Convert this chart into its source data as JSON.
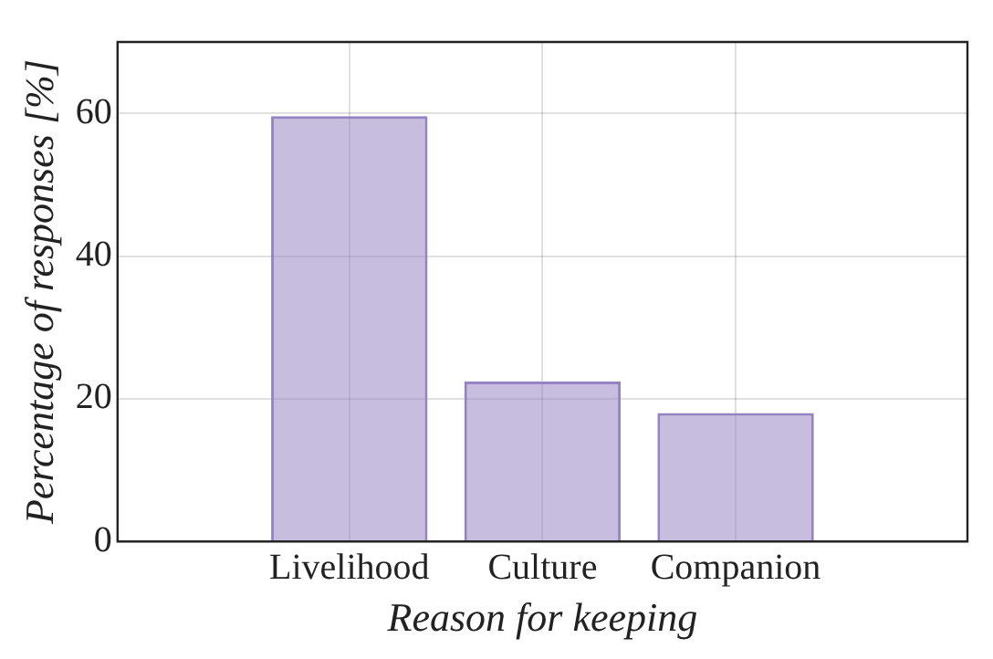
{
  "chart_data": {
    "type": "bar",
    "xlabel": "Reason for keeping",
    "ylabel": "Percentage of responses [%]",
    "categories": [
      "Livelihood",
      "Culture",
      "Companion"
    ],
    "values": [
      59.6,
      22.4,
      18.0
    ],
    "color": "#9684c2",
    "ylim": [
      0,
      70
    ],
    "yticks": [
      0,
      20,
      40,
      60
    ],
    "grid": true
  }
}
